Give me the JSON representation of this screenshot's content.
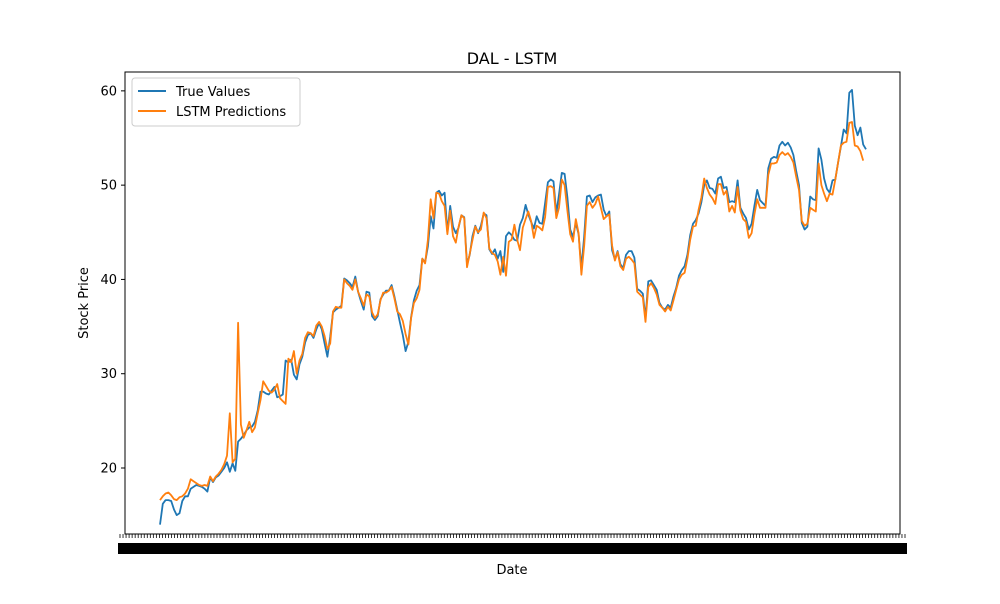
{
  "chart_data": {
    "type": "line",
    "title": "DAL - LSTM",
    "xlabel": "Date",
    "ylabel": "Stock Price",
    "ylim": [
      13,
      62
    ],
    "y_ticks": [
      20,
      30,
      40,
      50,
      60
    ],
    "grid": false,
    "legend_position": "upper-left",
    "x_tick_labels_overlapping": true,
    "series": [
      {
        "name": "True Values",
        "color": "#1f77b4",
        "values": [
          14.0,
          16.2,
          16.6,
          16.6,
          16.5,
          15.6,
          15.0,
          15.2,
          16.5,
          17.0,
          17.0,
          17.8,
          18.0,
          18.2,
          18.1,
          18.0,
          17.8,
          17.5,
          19.0,
          18.5,
          19.0,
          19.2,
          19.6,
          20.0,
          20.6,
          19.6,
          20.5,
          19.7,
          22.8,
          23.1,
          23.5,
          24.0,
          24.3,
          24.4,
          24.9,
          26.1,
          28.1,
          28.1,
          27.9,
          27.8,
          28.2,
          28.6,
          27.5,
          27.6,
          27.8,
          31.4,
          31.2,
          31.5,
          29.9,
          29.4,
          31.0,
          31.8,
          33.3,
          34.1,
          34.3,
          33.8,
          34.7,
          35.4,
          34.7,
          33.2,
          31.8,
          33.9,
          36.5,
          36.8,
          37.0,
          37.2,
          40.1,
          39.9,
          39.6,
          39.2,
          40.3,
          38.7,
          37.7,
          36.8,
          38.7,
          38.6,
          36.1,
          35.7,
          36.1,
          37.9,
          38.4,
          38.8,
          38.8,
          39.4,
          38.2,
          36.8,
          35.4,
          34.1,
          32.4,
          33.4,
          36.0,
          37.8,
          38.8,
          39.4,
          42.2,
          41.8,
          43.5,
          46.7,
          45.4,
          49.2,
          49.4,
          48.9,
          49.2,
          45.0,
          47.8,
          45.6,
          44.9,
          45.5,
          46.8,
          46.6,
          41.6,
          42.6,
          44.6,
          45.7,
          44.9,
          45.7,
          47.0,
          46.8,
          43.2,
          42.7,
          43.2,
          42.2,
          43.0,
          40.8,
          44.6,
          45.0,
          44.7,
          44.2,
          44.1,
          45.8,
          46.5,
          47.9,
          46.9,
          46.1,
          45.4,
          46.7,
          46.0,
          45.9,
          48.1,
          50.3,
          50.6,
          50.4,
          47.0,
          49.0,
          51.3,
          51.2,
          48.7,
          45.3,
          44.5,
          46.0,
          44.8,
          41.2,
          44.6,
          48.8,
          48.9,
          48.2,
          48.7,
          48.9,
          49.0,
          47.4,
          46.7,
          47.2,
          43.1,
          42.1,
          43.0,
          41.6,
          41.2,
          42.6,
          43.0,
          43.0,
          42.3,
          39.0,
          38.8,
          38.5,
          35.9,
          39.8,
          39.9,
          39.4,
          38.9,
          37.5,
          37.0,
          36.8,
          37.3,
          37.0,
          38.2,
          39.1,
          40.4,
          41.0,
          41.4,
          42.6,
          44.7,
          45.9,
          46.3,
          47.0,
          48.2,
          50.0,
          50.5,
          49.7,
          49.6,
          49.1,
          50.7,
          50.9,
          49.7,
          49.8,
          48.2,
          48.3,
          48.2,
          50.5,
          47.6,
          47.0,
          46.5,
          45.3,
          45.9,
          47.8,
          49.5,
          48.4,
          48.1,
          47.8,
          51.8,
          52.8,
          53.0,
          52.9,
          54.2,
          54.6,
          54.2,
          54.5,
          54.0,
          53.2,
          51.5,
          50.0,
          46.0,
          45.3,
          45.6,
          48.8,
          48.5,
          48.4,
          53.9,
          52.7,
          50.7,
          49.6,
          49.2,
          50.5,
          50.6,
          52.4,
          54.1,
          55.9,
          55.5,
          59.8,
          60.1,
          56.3,
          55.3,
          56.1,
          54.3,
          53.8
        ]
      },
      {
        "name": "LSTM Predictions",
        "color": "#ff7f0e",
        "values": [
          16.6,
          17.0,
          17.3,
          17.4,
          17.1,
          16.7,
          16.6,
          16.9,
          17.0,
          17.3,
          17.8,
          18.8,
          18.6,
          18.4,
          18.2,
          18.1,
          18.2,
          18.1,
          19.1,
          18.6,
          19.1,
          19.4,
          19.8,
          20.4,
          21.3,
          25.8,
          20.6,
          21.0,
          35.4,
          24.6,
          23.2,
          24.0,
          24.9,
          23.8,
          24.3,
          25.8,
          27.2,
          29.2,
          28.7,
          28.2,
          28.0,
          28.3,
          28.9,
          27.4,
          27.1,
          26.8,
          31.6,
          31.2,
          32.4,
          30.0,
          31.4,
          32.1,
          33.8,
          34.4,
          34.3,
          34.0,
          35.1,
          35.5,
          35.0,
          34.0,
          32.6,
          33.2,
          36.6,
          37.1,
          37.0,
          37.0,
          40.0,
          39.6,
          39.3,
          38.9,
          40.0,
          38.7,
          38.0,
          37.2,
          38.4,
          38.2,
          36.5,
          35.9,
          36.3,
          37.8,
          38.6,
          38.6,
          38.8,
          39.2,
          38.0,
          36.6,
          36.3,
          35.6,
          34.2,
          33.1,
          35.9,
          37.5,
          38.0,
          38.9,
          42.2,
          41.7,
          44.2,
          48.5,
          46.5,
          49.2,
          49.1,
          48.3,
          47.8,
          44.8,
          47.3,
          44.6,
          43.9,
          45.6,
          46.8,
          46.5,
          41.3,
          42.7,
          44.2,
          45.6,
          45.0,
          45.3,
          47.1,
          46.5,
          43.3,
          42.8,
          42.6,
          41.9,
          40.5,
          42.4,
          40.4,
          44.0,
          44.2,
          45.8,
          44.2,
          43.1,
          45.5,
          46.4,
          47.2,
          46.2,
          44.4,
          45.7,
          45.5,
          45.2,
          46.6,
          49.8,
          49.9,
          49.7,
          46.5,
          47.6,
          50.6,
          50.0,
          47.3,
          44.8,
          44.0,
          46.4,
          44.9,
          40.5,
          43.6,
          47.8,
          48.2,
          47.6,
          48.0,
          48.8,
          47.6,
          46.4,
          46.7,
          46.9,
          43.6,
          42.0,
          42.9,
          41.4,
          41.0,
          42.2,
          42.4,
          42.1,
          41.7,
          38.7,
          38.4,
          38.1,
          35.5,
          39.2,
          39.6,
          39.1,
          38.4,
          37.3,
          37.0,
          36.6,
          37.1,
          36.7,
          37.8,
          38.9,
          40.0,
          40.5,
          40.7,
          42.2,
          44.2,
          45.6,
          45.7,
          47.4,
          48.7,
          50.7,
          49.7,
          49.0,
          48.6,
          48.0,
          50.1,
          50.1,
          49.0,
          49.4,
          47.2,
          47.8,
          47.1,
          49.8,
          47.3,
          46.4,
          46.1,
          44.4,
          44.9,
          46.9,
          48.5,
          47.6,
          47.6,
          47.6,
          51.1,
          52.3,
          52.3,
          52.4,
          53.2,
          53.5,
          53.2,
          53.4,
          53.0,
          52.4,
          50.9,
          49.5,
          46.2,
          45.7,
          45.9,
          47.6,
          47.4,
          47.2,
          52.3,
          50.0,
          49.1,
          48.3,
          49.1,
          49.0,
          50.6,
          52.4,
          54.2,
          54.5,
          54.6,
          56.6,
          56.7,
          54.2,
          54.1,
          53.6,
          52.6
        ]
      }
    ]
  }
}
